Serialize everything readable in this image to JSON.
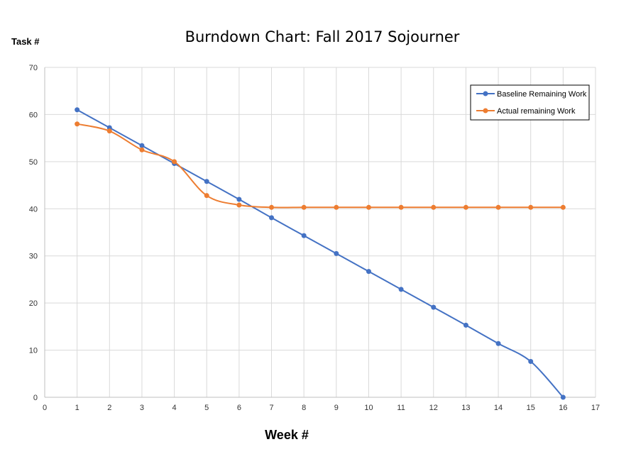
{
  "chart_data": {
    "type": "line",
    "title": "Burndown Chart: Fall 2017 Sojourner",
    "xlabel": "Week #",
    "ylabel": "Task #",
    "xlim": [
      0,
      17
    ],
    "ylim": [
      0,
      70
    ],
    "x_ticks": [
      0,
      1,
      2,
      3,
      4,
      5,
      6,
      7,
      8,
      9,
      10,
      11,
      12,
      13,
      14,
      15,
      16,
      17
    ],
    "y_ticks": [
      0,
      10,
      20,
      30,
      40,
      50,
      60,
      70
    ],
    "grid": true,
    "legend_position": "top-right",
    "series": [
      {
        "name": "Baseline Remaining Work",
        "color": "#4472C4",
        "x": [
          1,
          2,
          3,
          4,
          5,
          6,
          7,
          8,
          9,
          10,
          11,
          12,
          13,
          14,
          15,
          16
        ],
        "values": [
          61,
          57.2,
          53.4,
          49.6,
          45.8,
          42,
          38.1,
          34.3,
          30.5,
          26.7,
          22.9,
          19.1,
          15.3,
          11.4,
          7.6,
          0
        ]
      },
      {
        "name": "Actual remaining Work",
        "color": "#ED7D31",
        "x": [
          1,
          2,
          3,
          4,
          5,
          6,
          7,
          8,
          9,
          10,
          11,
          12,
          13,
          14,
          15,
          16
        ],
        "values": [
          58,
          56.5,
          52.5,
          50,
          42.8,
          40.8,
          40.3,
          40.3,
          40.3,
          40.3,
          40.3,
          40.3,
          40.3,
          40.3,
          40.3,
          40.3
        ]
      }
    ]
  }
}
